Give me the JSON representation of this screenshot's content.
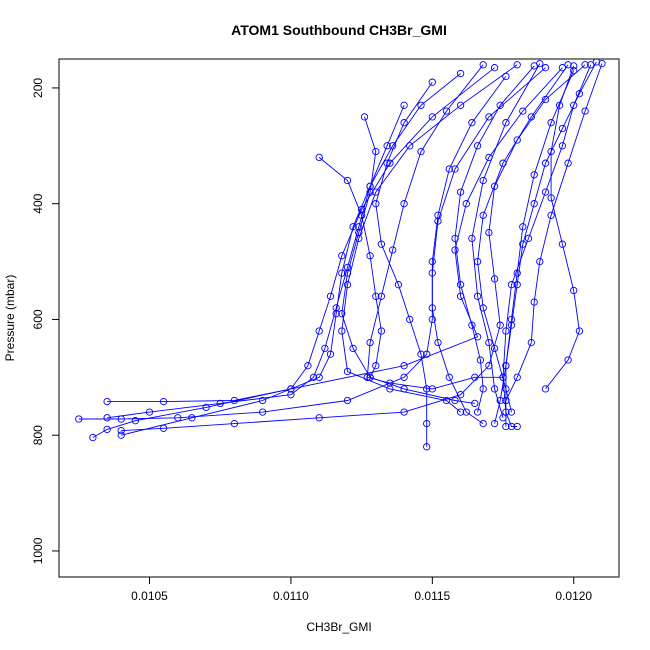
{
  "chart_data": {
    "type": "line",
    "title": "ATOM1 Southbound CH3Br_GMI",
    "xlabel": "CH3Br_GMI",
    "ylabel": "Pressure (mbar)",
    "xlim": [
      0.01018,
      0.01216
    ],
    "ylim": [
      1045,
      150
    ],
    "y_reversed": true,
    "grid": false,
    "marker": "open-circle",
    "color": "#0000ff",
    "x_ticks": [
      {
        "value": 0.0105,
        "label": "0.0105"
      },
      {
        "value": 0.011,
        "label": "0.0110"
      },
      {
        "value": 0.0115,
        "label": "0.0115"
      },
      {
        "value": 0.012,
        "label": "0.0120"
      }
    ],
    "y_ticks": [
      {
        "value": 200,
        "label": "200"
      },
      {
        "value": 400,
        "label": "400"
      },
      {
        "value": 600,
        "label": "600"
      },
      {
        "value": 800,
        "label": "800"
      },
      {
        "value": 1000,
        "label": "1000"
      }
    ],
    "series": [
      {
        "points": [
          [
            0.01206,
            160
          ],
          [
            0.012,
            230
          ],
          [
            0.01196,
            300
          ],
          [
            0.0119,
            380
          ],
          [
            0.01184,
            460
          ],
          [
            0.01178,
            540
          ],
          [
            0.01176,
            620
          ],
          [
            0.01175,
            700
          ],
          [
            0.01176,
            760
          ],
          [
            0.01178,
            785
          ],
          [
            0.0118,
            785
          ]
        ]
      },
      {
        "points": [
          [
            0.01168,
            160
          ],
          [
            0.01155,
            240
          ],
          [
            0.01146,
            310
          ],
          [
            0.0114,
            400
          ],
          [
            0.01136,
            480
          ],
          [
            0.01132,
            560
          ],
          [
            0.01128,
            640
          ],
          [
            0.01127,
            700
          ],
          [
            0.01135,
            710
          ],
          [
            0.0115,
            720
          ],
          [
            0.01165,
            700
          ],
          [
            0.01175,
            700
          ]
        ]
      },
      {
        "points": [
          [
            0.01198,
            160
          ],
          [
            0.01185,
            250
          ],
          [
            0.01175,
            330
          ],
          [
            0.01168,
            420
          ],
          [
            0.01166,
            500
          ],
          [
            0.01168,
            580
          ],
          [
            0.01172,
            650
          ],
          [
            0.01176,
            720
          ],
          [
            0.01178,
            760
          ]
        ]
      },
      {
        "points": [
          [
            0.0119,
            165
          ],
          [
            0.0117,
            250
          ],
          [
            0.01158,
            340
          ],
          [
            0.01152,
            430
          ],
          [
            0.0115,
            520
          ],
          [
            0.0115,
            600
          ],
          [
            0.01148,
            660
          ],
          [
            0.0114,
            700
          ],
          [
            0.0112,
            740
          ],
          [
            0.0109,
            760
          ],
          [
            0.0106,
            770
          ],
          [
            0.0104,
            772
          ],
          [
            0.01025,
            772
          ]
        ]
      },
      {
        "points": [
          [
            0.01204,
            160
          ],
          [
            0.0119,
            220
          ],
          [
            0.0118,
            290
          ],
          [
            0.01172,
            370
          ],
          [
            0.0117,
            450
          ],
          [
            0.01172,
            530
          ],
          [
            0.01174,
            610
          ],
          [
            0.0117,
            680
          ],
          [
            0.0116,
            730
          ],
          [
            0.0114,
            760
          ],
          [
            0.0111,
            770
          ],
          [
            0.0108,
            780
          ],
          [
            0.01055,
            788
          ],
          [
            0.0104,
            792
          ]
        ]
      },
      {
        "points": [
          [
            0.0118,
            160
          ],
          [
            0.0116,
            230
          ],
          [
            0.01142,
            300
          ],
          [
            0.0113,
            380
          ],
          [
            0.01124,
            460
          ],
          [
            0.0112,
            540
          ],
          [
            0.01118,
            620
          ],
          [
            0.0112,
            690
          ],
          [
            0.01135,
            720
          ],
          [
            0.01155,
            740
          ],
          [
            0.0116,
            760
          ]
        ]
      },
      {
        "points": [
          [
            0.012,
            170
          ],
          [
            0.01192,
            260
          ],
          [
            0.01186,
            350
          ],
          [
            0.01182,
            440
          ],
          [
            0.0118,
            520
          ],
          [
            0.01178,
            600
          ],
          [
            0.01176,
            680
          ],
          [
            0.01174,
            740
          ],
          [
            0.01172,
            780
          ]
        ]
      },
      {
        "points": [
          [
            0.01172,
            165
          ],
          [
            0.0115,
            250
          ],
          [
            0.01135,
            330
          ],
          [
            0.01125,
            410
          ],
          [
            0.01118,
            490
          ],
          [
            0.01114,
            560
          ],
          [
            0.0111,
            620
          ],
          [
            0.01106,
            680
          ],
          [
            0.011,
            720
          ],
          [
            0.0108,
            740
          ],
          [
            0.01055,
            742
          ],
          [
            0.01035,
            742
          ]
        ]
      },
      {
        "points": [
          [
            0.0111,
            320
          ],
          [
            0.0112,
            360
          ],
          [
            0.01125,
            420
          ],
          [
            0.01128,
            490
          ],
          [
            0.0113,
            560
          ],
          [
            0.01132,
            620
          ],
          [
            0.0113,
            680
          ],
          [
            0.01128,
            700
          ]
        ]
      },
      {
        "points": [
          [
            0.01126,
            250
          ],
          [
            0.0113,
            310
          ],
          [
            0.01128,
            380
          ],
          [
            0.01124,
            450
          ],
          [
            0.0112,
            520
          ],
          [
            0.01118,
            590
          ],
          [
            0.01122,
            650
          ],
          [
            0.01128,
            700
          ],
          [
            0.0114,
            720
          ],
          [
            0.01158,
            740
          ],
          [
            0.01165,
            745
          ]
        ]
      },
      {
        "points": [
          [
            0.0121,
            158
          ],
          [
            0.01204,
            240
          ],
          [
            0.01198,
            330
          ],
          [
            0.01192,
            420
          ],
          [
            0.01188,
            500
          ],
          [
            0.01186,
            570
          ],
          [
            0.01185,
            640
          ],
          [
            0.0118,
            700
          ],
          [
            0.01176,
            740
          ]
        ]
      },
      {
        "points": [
          [
            0.01186,
            162
          ],
          [
            0.01174,
            230
          ],
          [
            0.01166,
            300
          ],
          [
            0.0116,
            380
          ],
          [
            0.01158,
            460
          ],
          [
            0.0116,
            540
          ],
          [
            0.01164,
            610
          ],
          [
            0.01167,
            670
          ],
          [
            0.01168,
            720
          ],
          [
            0.01166,
            760
          ]
        ]
      },
      {
        "points": [
          [
            0.0115,
            190
          ],
          [
            0.0114,
            260
          ],
          [
            0.01134,
            330
          ],
          [
            0.0113,
            400
          ],
          [
            0.01132,
            470
          ],
          [
            0.01138,
            540
          ],
          [
            0.01142,
            600
          ],
          [
            0.01146,
            660
          ],
          [
            0.01148,
            720
          ],
          [
            0.01148,
            780
          ],
          [
            0.01148,
            820
          ]
        ]
      },
      {
        "points": [
          [
            0.01196,
            165
          ],
          [
            0.01182,
            240
          ],
          [
            0.0117,
            320
          ],
          [
            0.01162,
            400
          ],
          [
            0.01158,
            480
          ],
          [
            0.0116,
            560
          ],
          [
            0.01166,
            630
          ],
          [
            0.0114,
            680
          ],
          [
            0.011,
            720
          ],
          [
            0.0107,
            752
          ],
          [
            0.01045,
            775
          ],
          [
            0.01035,
            790
          ],
          [
            0.0103,
            804
          ]
        ]
      },
      {
        "points": [
          [
            0.01208,
            155
          ],
          [
            0.01202,
            210
          ],
          [
            0.01196,
            270
          ],
          [
            0.0119,
            330
          ],
          [
            0.01186,
            400
          ],
          [
            0.01182,
            470
          ],
          [
            0.0118,
            540
          ],
          [
            0.01178,
            610
          ],
          [
            0.01176,
            680
          ],
          [
            0.01176,
            740
          ],
          [
            0.01176,
            785
          ]
        ]
      },
      {
        "points": [
          [
            0.0116,
            175
          ],
          [
            0.01146,
            230
          ],
          [
            0.01136,
            300
          ],
          [
            0.01128,
            370
          ],
          [
            0.01122,
            440
          ],
          [
            0.01118,
            520
          ],
          [
            0.01116,
            590
          ],
          [
            0.01114,
            660
          ],
          [
            0.0111,
            700
          ],
          [
            0.0109,
            740
          ],
          [
            0.01065,
            770
          ],
          [
            0.0104,
            800
          ]
        ]
      },
      {
        "points": [
          [
            0.012,
            162
          ],
          [
            0.01195,
            230
          ],
          [
            0.01192,
            310
          ],
          [
            0.01192,
            390
          ],
          [
            0.01196,
            470
          ],
          [
            0.012,
            550
          ],
          [
            0.01202,
            620
          ],
          [
            0.01198,
            670
          ],
          [
            0.0119,
            720
          ]
        ]
      },
      {
        "points": [
          [
            0.01188,
            158
          ],
          [
            0.01176,
            260
          ],
          [
            0.01168,
            360
          ],
          [
            0.01164,
            460
          ],
          [
            0.01166,
            560
          ],
          [
            0.0117,
            640
          ],
          [
            0.01172,
            720
          ],
          [
            0.01175,
            770
          ]
        ]
      },
      {
        "points": [
          [
            0.01176,
            180
          ],
          [
            0.01164,
            260
          ],
          [
            0.01156,
            340
          ],
          [
            0.01152,
            420
          ],
          [
            0.0115,
            500
          ],
          [
            0.0115,
            580
          ],
          [
            0.01152,
            640
          ],
          [
            0.01156,
            700
          ],
          [
            0.01162,
            760
          ],
          [
            0.01168,
            780
          ]
        ]
      },
      {
        "points": [
          [
            0.0114,
            230
          ],
          [
            0.01134,
            300
          ],
          [
            0.01128,
            370
          ],
          [
            0.01124,
            440
          ],
          [
            0.0112,
            510
          ],
          [
            0.01116,
            580
          ],
          [
            0.01112,
            650
          ],
          [
            0.01108,
            700
          ],
          [
            0.011,
            730
          ],
          [
            0.01075,
            745
          ],
          [
            0.0105,
            760
          ],
          [
            0.01035,
            770
          ]
        ]
      }
    ]
  }
}
